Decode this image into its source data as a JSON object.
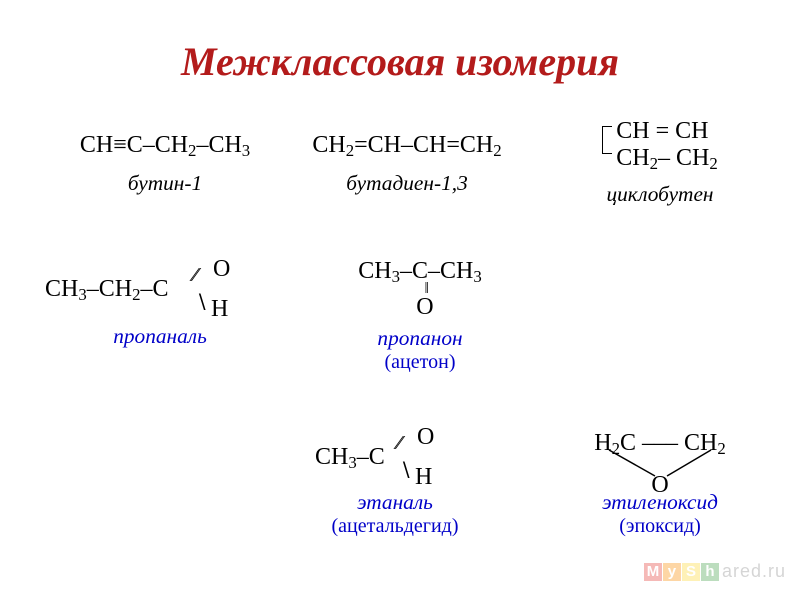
{
  "title": {
    "text": "Межклассовая изомерия",
    "color": "#b31b1b",
    "fontsize_pt": 30
  },
  "background": "#ffffff",
  "formula_color": "#000000",
  "label_color": "#0000c8",
  "formula_fontsize_pt": 18,
  "label_fontsize_pt": 16,
  "row1": {
    "butyne": {
      "formula_html": "CH≡C–CH<sub>2</sub>–CH<sub>3</sub>",
      "label": "бутин-1"
    },
    "butadiene": {
      "formula_html": "CH<sub>2</sub>=CH–CH=CH<sub>2</sub>",
      "label": "бутадиен-1,3"
    },
    "cyclobutene": {
      "top_html": "CH = CH",
      "bot_html": "CH<sub>2</sub>– CH<sub>2</sub>",
      "label": "циклобутен"
    }
  },
  "row2": {
    "propanal": {
      "left_html": "CH<sub>3</sub>–CH<sub>2</sub>–C",
      "o": "O",
      "h": "H",
      "label": "пропаналь"
    },
    "propanone": {
      "line_html": "CH<sub>3</sub>–C–CH<sub>3</sub>",
      "o": "O",
      "label_main": "пропанон",
      "label_sub": "(ацетон)"
    }
  },
  "row3": {
    "ethanal": {
      "left_html": "CH<sub>3</sub>–C",
      "o": "O",
      "h": "H",
      "label_main": "этаналь",
      "label_sub": "(ацетальдегид)"
    },
    "epoxide": {
      "top_html": "H<sub>2</sub>C ––– CH<sub>2</sub>",
      "o": "O",
      "label_main": "этиленоксид",
      "label_sub": "(эпоксид)"
    }
  },
  "watermark": {
    "letters": [
      "M",
      "y",
      "S",
      "h"
    ],
    "colors": [
      "#e53935",
      "#fb8c00",
      "#fdd835",
      "#43a047"
    ],
    "rest": "ared.ru"
  }
}
